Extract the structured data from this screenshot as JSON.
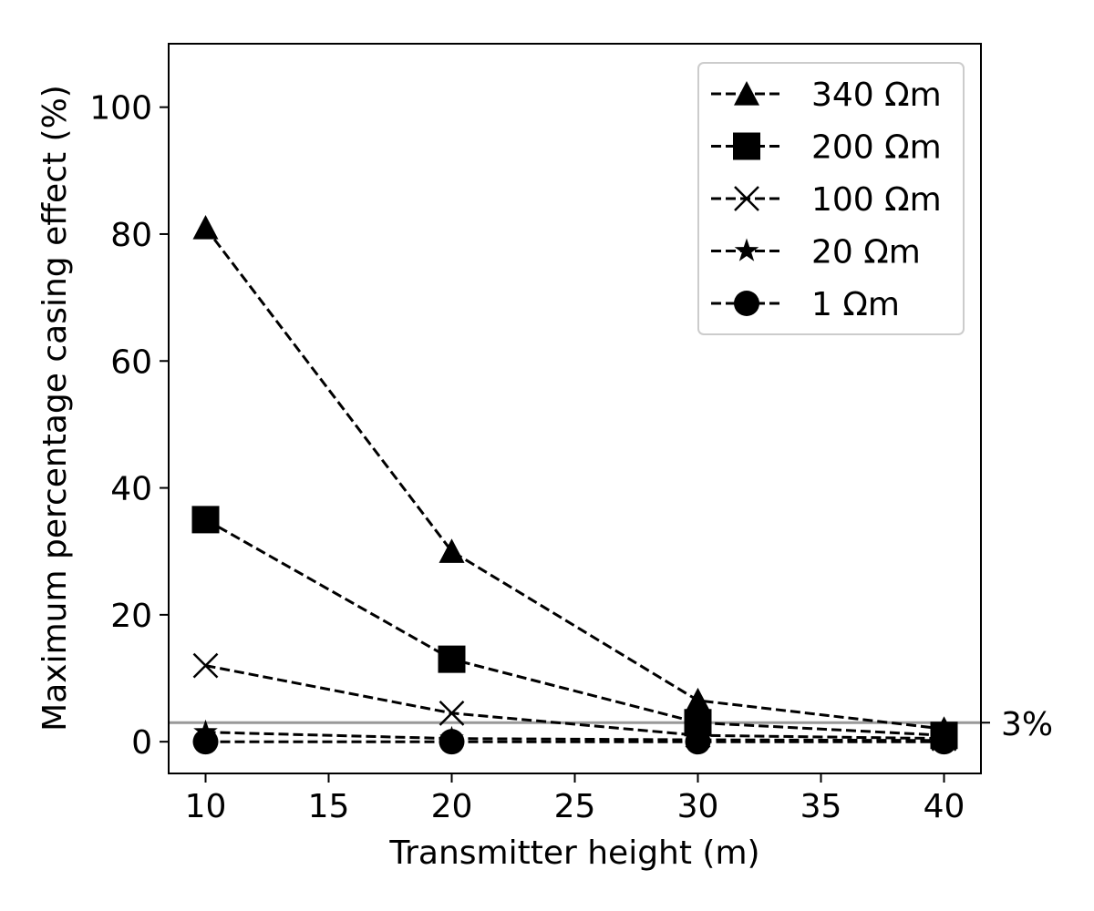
{
  "chart_data": {
    "type": "line",
    "title": "",
    "xlabel": "Transmitter height (m)",
    "ylabel": "Maximum percentage casing effect (%)",
    "x": [
      10,
      20,
      30,
      40
    ],
    "xlim": [
      8.5,
      41.5
    ],
    "ylim": [
      -5,
      110
    ],
    "xticks": [
      10,
      15,
      20,
      25,
      30,
      35,
      40
    ],
    "yticks": [
      0,
      20,
      40,
      60,
      80,
      100
    ],
    "grid": false,
    "legend_position": "top-right",
    "series": [
      {
        "name": "340 Ωm",
        "marker": "triangle",
        "values": [
          81,
          30,
          6.5,
          2
        ]
      },
      {
        "name": "200 Ωm",
        "marker": "square",
        "values": [
          35,
          13,
          3,
          1
        ]
      },
      {
        "name": "100 Ωm",
        "marker": "x",
        "values": [
          12,
          4.5,
          1,
          0.5
        ]
      },
      {
        "name": "20 Ωm",
        "marker": "star",
        "values": [
          1.5,
          0.5,
          0.3,
          0.2
        ]
      },
      {
        "name": "1 Ωm",
        "marker": "circle",
        "values": [
          0,
          0,
          0,
          0
        ]
      }
    ],
    "reference_line": {
      "y": 3,
      "label": "3%",
      "color": "#999999"
    }
  }
}
